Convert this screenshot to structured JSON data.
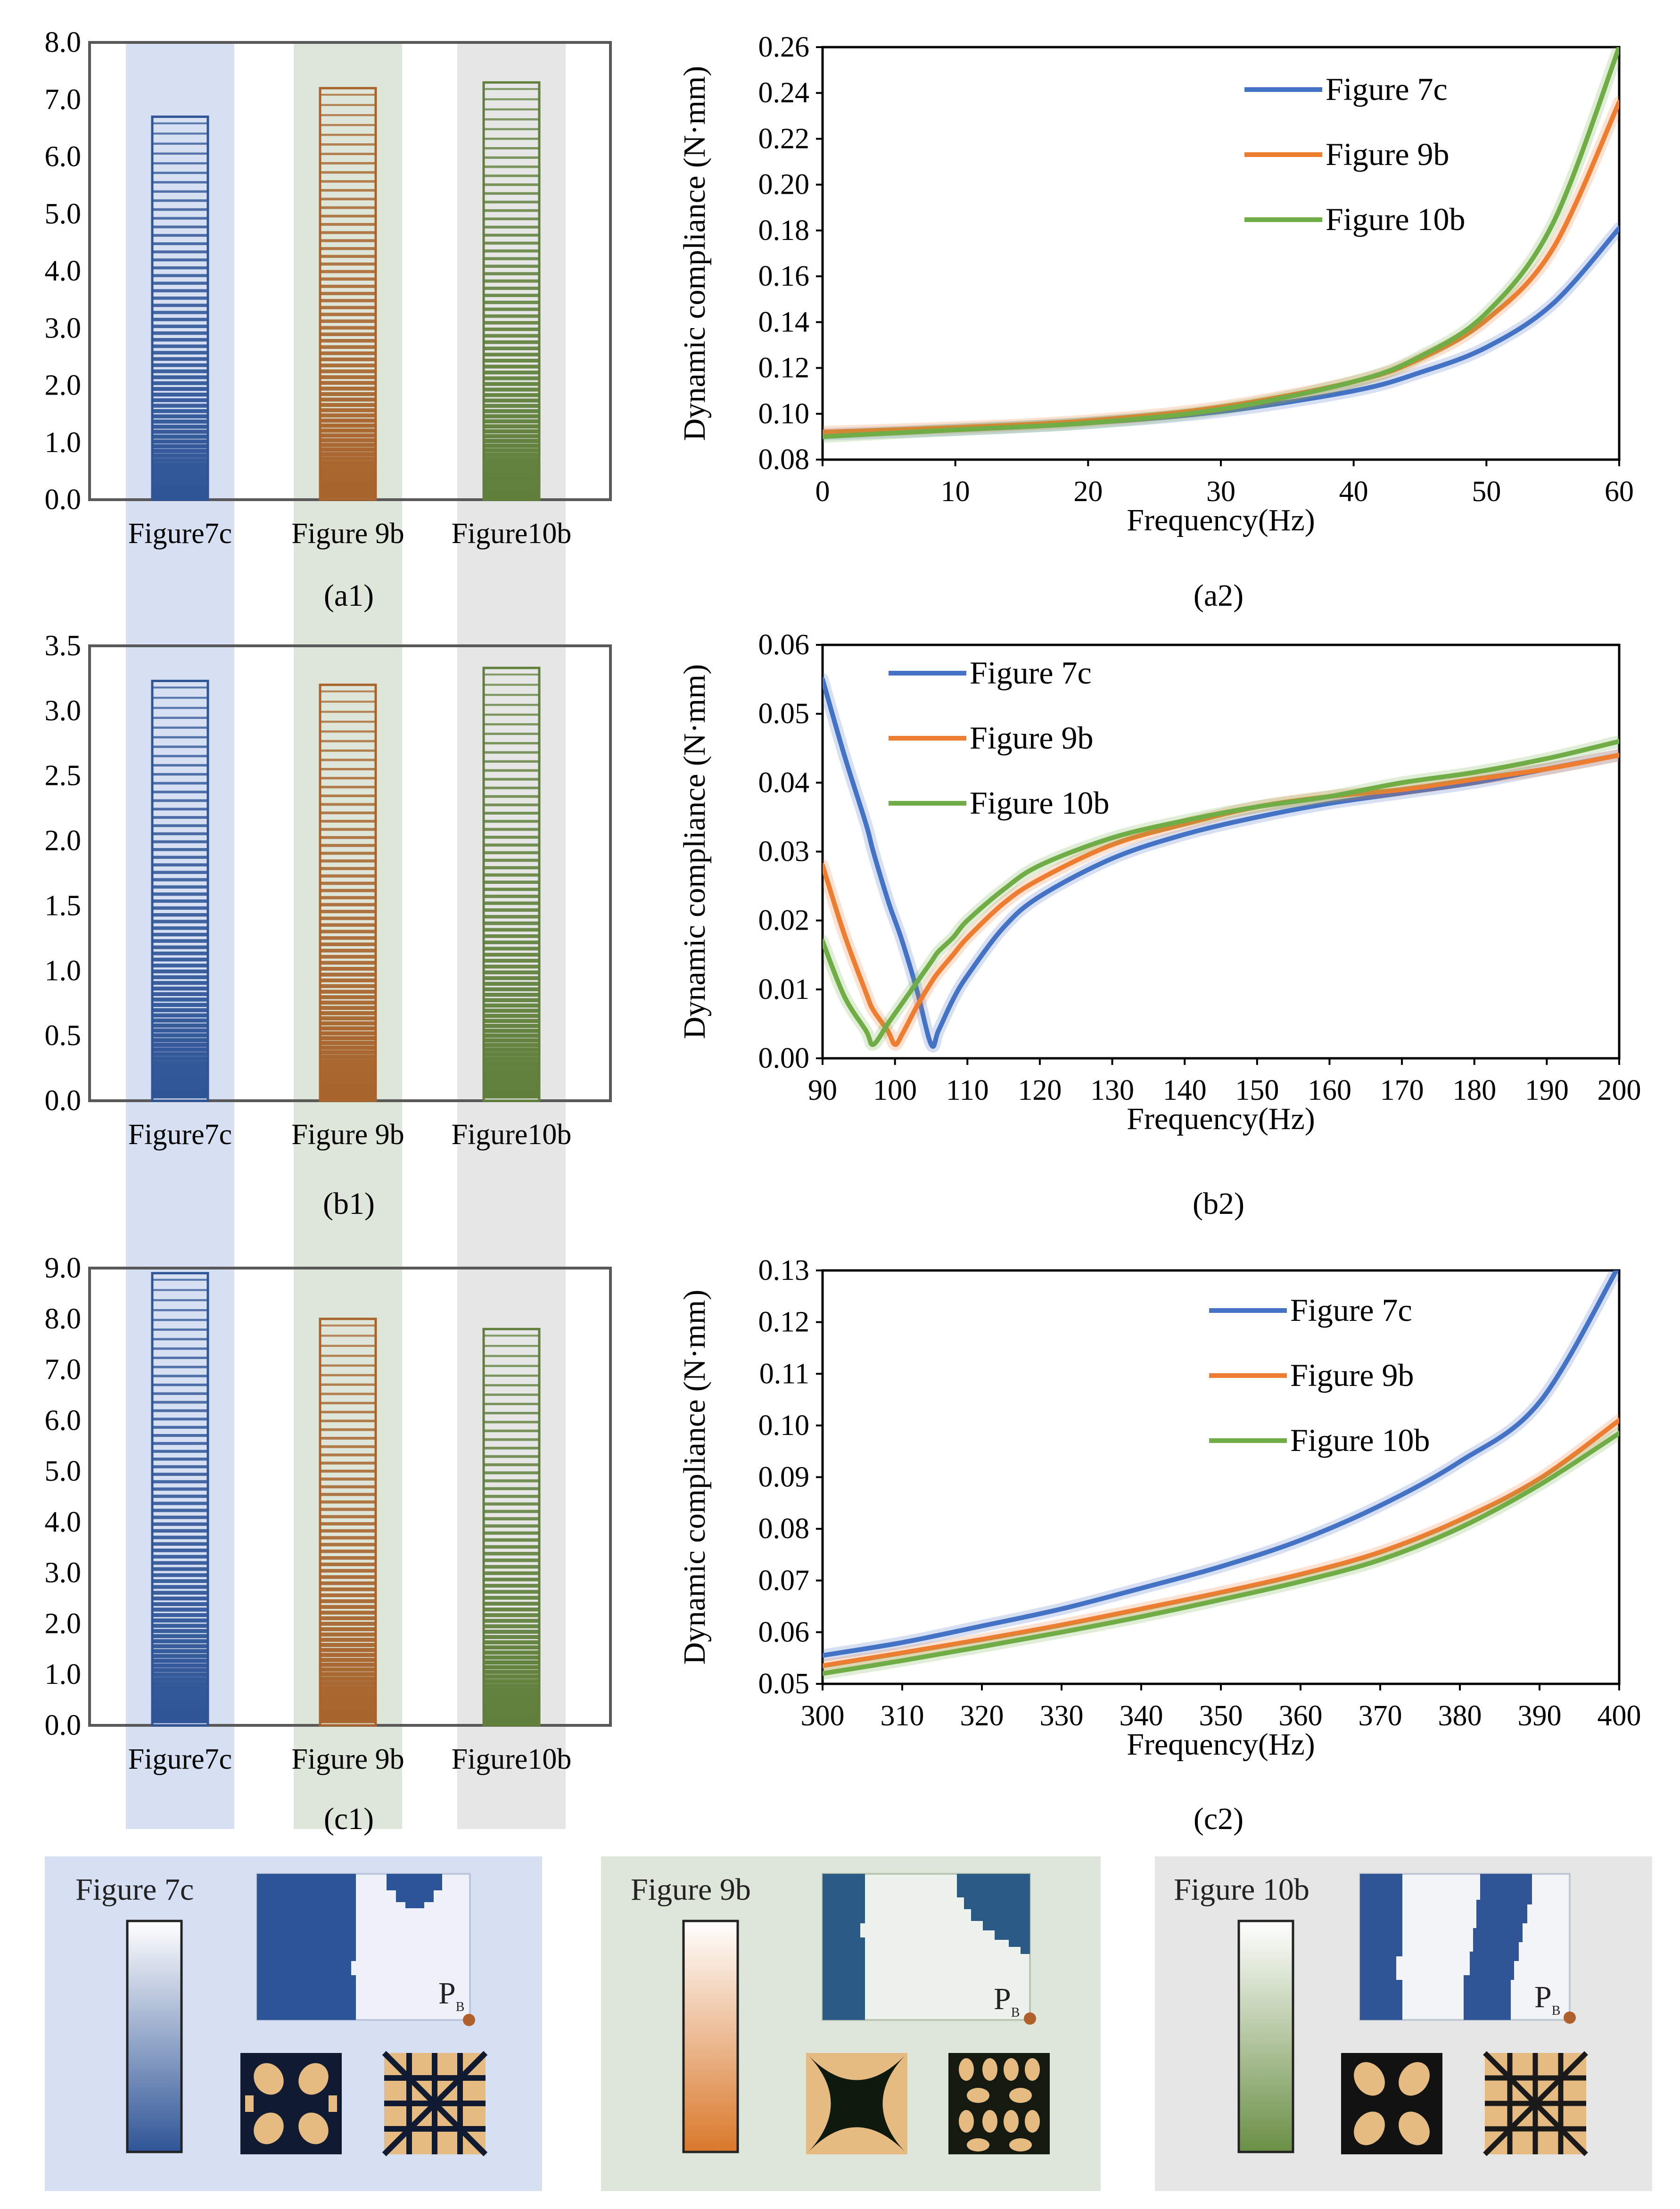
{
  "chart_data": [
    {
      "id": "a1",
      "type": "bar",
      "categories": [
        "Figure7c",
        "Figure 9b",
        "Figure10b"
      ],
      "values": [
        6.7,
        7.2,
        7.3
      ],
      "ylim": [
        0,
        8
      ],
      "yticks": [
        "0.0",
        "1.0",
        "2.0",
        "3.0",
        "4.0",
        "5.0",
        "6.0",
        "7.0",
        "8.0"
      ],
      "caption": "(a1)"
    },
    {
      "id": "a2",
      "type": "line",
      "xlabel": "Frequency(Hz)",
      "ylabel": "Dynamic compliance (N·mm)",
      "xlim": [
        0,
        60
      ],
      "ylim": [
        0.08,
        0.26
      ],
      "xticks": [
        "0",
        "10",
        "20",
        "30",
        "40",
        "50",
        "60"
      ],
      "yticks": [
        "0.08",
        "0.10",
        "0.12",
        "0.14",
        "0.16",
        "0.18",
        "0.20",
        "0.22",
        "0.24",
        "0.26"
      ],
      "x": [
        0,
        10,
        20,
        30,
        40,
        45,
        50,
        55,
        60
      ],
      "series": [
        {
          "name": "Figure 7c",
          "values": [
            0.091,
            0.093,
            0.096,
            0.101,
            0.11,
            0.118,
            0.129,
            0.148,
            0.181
          ]
        },
        {
          "name": "Figure 9b",
          "values": [
            0.092,
            0.094,
            0.097,
            0.103,
            0.114,
            0.124,
            0.141,
            0.172,
            0.236
          ]
        },
        {
          "name": "Figure 10b",
          "values": [
            0.09,
            0.093,
            0.096,
            0.102,
            0.114,
            0.125,
            0.144,
            0.183,
            0.26
          ]
        }
      ],
      "legend_position": "top-right",
      "caption": "(a2)"
    },
    {
      "id": "b1",
      "type": "bar",
      "categories": [
        "Figure7c",
        "Figure 9b",
        "Figure10b"
      ],
      "values": [
        3.23,
        3.2,
        3.33
      ],
      "ylim": [
        0,
        3.5
      ],
      "yticks": [
        "0.0",
        "0.5",
        "1.0",
        "1.5",
        "2.0",
        "2.5",
        "3.0",
        "3.5"
      ],
      "caption": "(b1)"
    },
    {
      "id": "b2",
      "type": "line",
      "xlabel": "Frequency(Hz)",
      "ylabel": "Dynamic compliance (N·mm)",
      "xlim": [
        90,
        200
      ],
      "ylim": [
        0,
        0.06
      ],
      "xticks": [
        "90",
        "100",
        "110",
        "120",
        "130",
        "140",
        "150",
        "160",
        "170",
        "180",
        "190",
        "200"
      ],
      "yticks": [
        "0.00",
        "0.01",
        "0.02",
        "0.03",
        "0.04",
        "0.05",
        "0.06"
      ],
      "x": [
        90,
        93,
        96,
        97,
        99,
        100,
        101,
        103,
        105,
        106,
        108,
        110,
        115,
        120,
        130,
        140,
        150,
        160,
        170,
        180,
        190,
        200
      ],
      "series": [
        {
          "name": "Figure 7c",
          "values": [
            0.055,
            0.044,
            0.034,
            0.03,
            0.023,
            0.02,
            0.017,
            0.01,
            0.002,
            0.004,
            0.0085,
            0.012,
            0.019,
            0.0235,
            0.029,
            0.0325,
            0.035,
            0.037,
            0.0385,
            0.04,
            0.042,
            0.044
          ]
        },
        {
          "name": "Figure 9b",
          "values": [
            0.028,
            0.018,
            0.0095,
            0.007,
            0.004,
            0.002,
            0.0035,
            0.0075,
            0.011,
            0.0125,
            0.015,
            0.0175,
            0.0225,
            0.026,
            0.031,
            0.034,
            0.0365,
            0.038,
            0.039,
            0.0405,
            0.042,
            0.044
          ]
        },
        {
          "name": "Figure 10b",
          "values": [
            0.017,
            0.009,
            0.004,
            0.002,
            0.005,
            0.0065,
            0.008,
            0.011,
            0.014,
            0.0155,
            0.0175,
            0.02,
            0.0245,
            0.028,
            0.032,
            0.0345,
            0.0365,
            0.038,
            0.04,
            0.0415,
            0.0435,
            0.046
          ]
        }
      ],
      "legend_position": "top-left",
      "caption": "(b2)"
    },
    {
      "id": "c1",
      "type": "bar",
      "categories": [
        "Figure7c",
        "Figure 9b",
        "Figure10b"
      ],
      "values": [
        8.9,
        8.0,
        7.8
      ],
      "ylim": [
        0,
        9
      ],
      "yticks": [
        "0.0",
        "1.0",
        "2.0",
        "3.0",
        "4.0",
        "5.0",
        "6.0",
        "7.0",
        "8.0",
        "9.0"
      ],
      "caption": "(c1)"
    },
    {
      "id": "c2",
      "type": "line",
      "xlabel": "Frequency(Hz)",
      "ylabel": "Dynamic compliance (N·mm)",
      "xlim": [
        300,
        400
      ],
      "ylim": [
        0.05,
        0.13
      ],
      "xticks": [
        "300",
        "310",
        "320",
        "330",
        "340",
        "350",
        "360",
        "370",
        "380",
        "390",
        "400"
      ],
      "yticks": [
        "0.05",
        "0.06",
        "0.07",
        "0.08",
        "0.09",
        "0.10",
        "0.11",
        "0.12",
        "0.13"
      ],
      "x": [
        300,
        310,
        320,
        330,
        340,
        350,
        360,
        370,
        380,
        390,
        400
      ],
      "series": [
        {
          "name": "Figure 7c",
          "values": [
            0.0555,
            0.058,
            0.0612,
            0.0645,
            0.0685,
            0.0727,
            0.0778,
            0.0845,
            0.093,
            0.1045,
            0.131
          ]
        },
        {
          "name": "Figure 9b",
          "values": [
            0.0535,
            0.056,
            0.0586,
            0.0614,
            0.0645,
            0.0677,
            0.0712,
            0.0755,
            0.0817,
            0.0897,
            0.101
          ]
        },
        {
          "name": "Figure 10b",
          "values": [
            0.052,
            0.0545,
            0.0572,
            0.06,
            0.063,
            0.0663,
            0.0698,
            0.074,
            0.0802,
            0.0885,
            0.0985
          ]
        }
      ],
      "legend_position": "top-right",
      "caption": "(c2)"
    }
  ],
  "panels": [
    {
      "label": "Figure 7c",
      "point_label": "P",
      "point_sub": "B"
    },
    {
      "label": "Figure 9b",
      "point_label": "P",
      "point_sub": "B"
    },
    {
      "label": "Figure 10b",
      "point_label": "P",
      "point_sub": "B"
    }
  ],
  "colors": {
    "blue": "#4472c4",
    "orange": "#ed7d31",
    "green": "#70ad47",
    "bar_blue": "#2f5597",
    "bar_orange": "#a8642c",
    "bar_green": "#5f7f3a",
    "bg_blue": "#d6e0f2",
    "bg_green": "#dde6d8",
    "bg_gray": "#e6e6e6",
    "axis": "#595959"
  }
}
